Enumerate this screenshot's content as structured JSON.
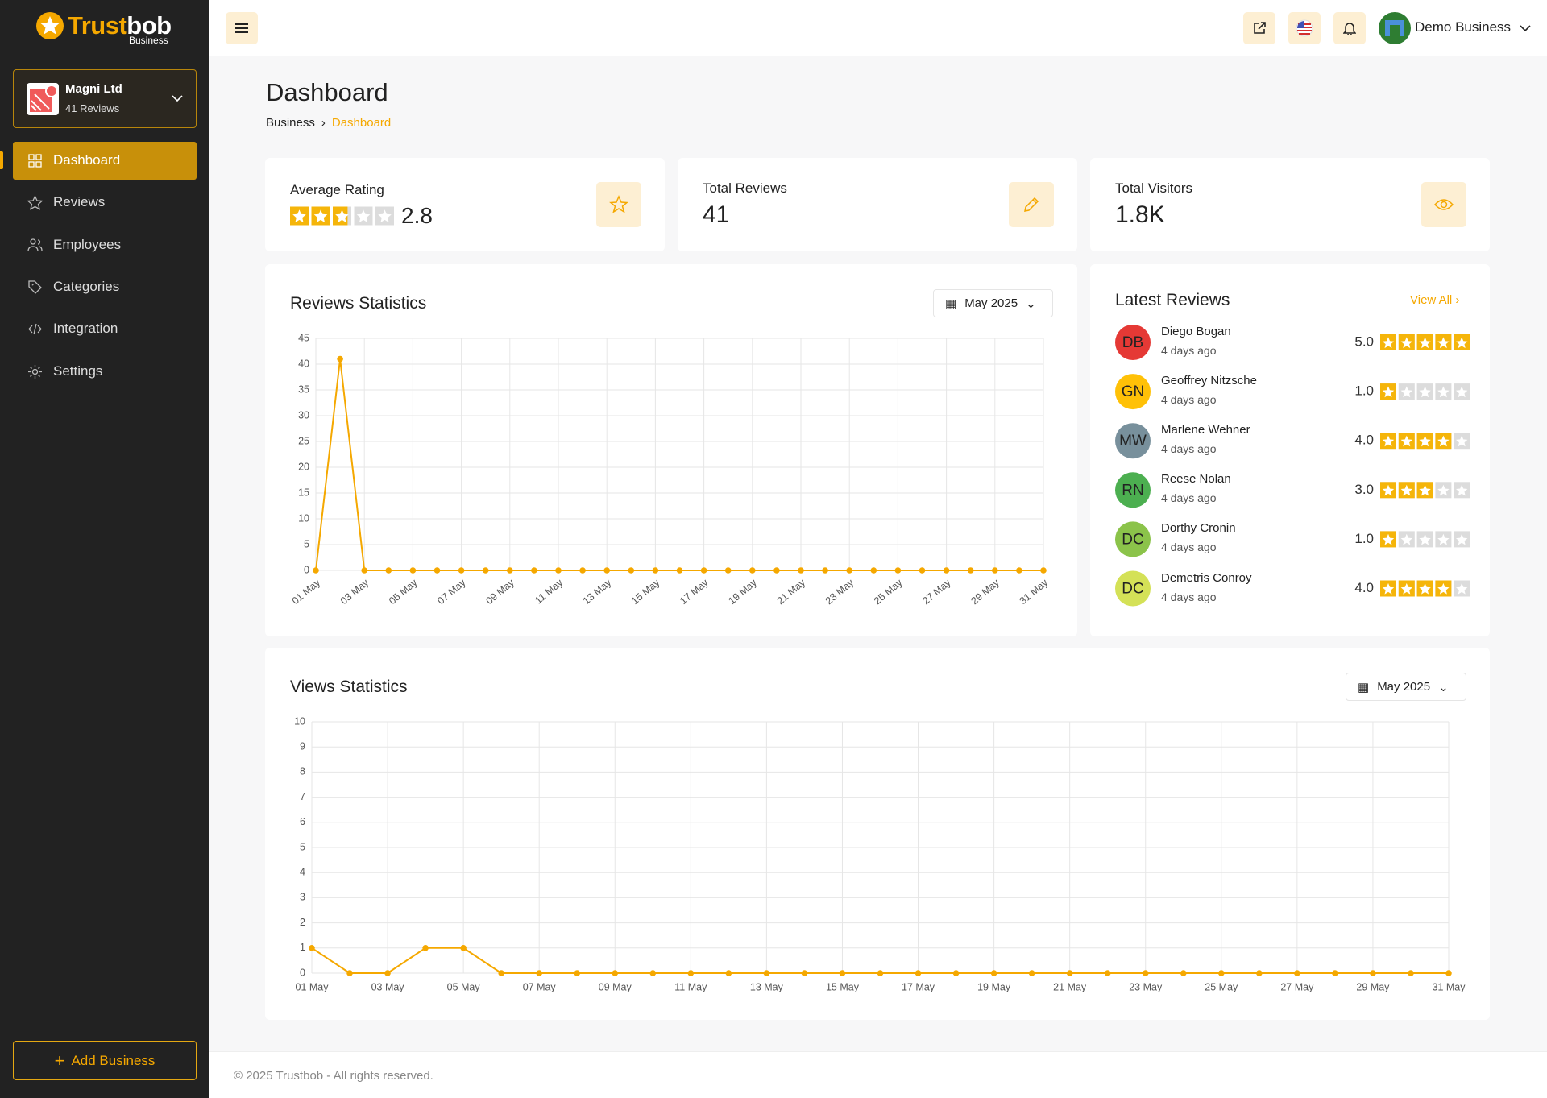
{
  "brand": {
    "name_parts": [
      "Trust",
      "bob"
    ],
    "sub": "Business"
  },
  "business": {
    "name": "Magni Ltd",
    "reviews": "41 Reviews"
  },
  "nav": [
    "Dashboard",
    "Reviews",
    "Employees",
    "Categories",
    "Integration",
    "Settings"
  ],
  "add_business": "Add Business",
  "user": "Demo Business",
  "page": {
    "title": "Dashboard",
    "breadcrumb": [
      "Business",
      "Dashboard"
    ]
  },
  "stats": [
    {
      "label": "Average Rating",
      "value": 2.8
    },
    {
      "label": "Total Reviews",
      "value": 41
    },
    {
      "label": "Total Visitors",
      "value": "1.8K"
    }
  ],
  "reviews_chart": {
    "type": "line",
    "title": "Reviews Statistics",
    "period": "May 2025",
    "categories": [
      "01 May",
      null,
      "03 May",
      null,
      "05 May",
      null,
      "07 May",
      null,
      "09 May",
      null,
      "11 May",
      null,
      "13 May",
      null,
      "15 May",
      null,
      "17 May",
      null,
      "19 May",
      null,
      "21 May",
      null,
      "23 May",
      null,
      "25 May",
      null,
      "27 May",
      null,
      "29 May",
      null,
      "31 May"
    ],
    "values": [
      0,
      41,
      0,
      0,
      0,
      0,
      0,
      0,
      0,
      0,
      0,
      0,
      0,
      0,
      0,
      0,
      0,
      0,
      0,
      0,
      0,
      0,
      0,
      0,
      0,
      0,
      0,
      0,
      0,
      0,
      0
    ],
    "color": "#f5a800",
    "ylim": [
      0,
      45
    ],
    "yticks": [
      0,
      5,
      10,
      15,
      20,
      25,
      30,
      35,
      40,
      45
    ],
    "grid": true
  },
  "latest_reviews": {
    "title": "Latest Reviews",
    "view_all": "View All",
    "items": [
      {
        "initials": "DB",
        "color": "#e53935",
        "name": "Diego Bogan",
        "time": "4 days ago",
        "rating": 5,
        "rating_label": "5.0"
      },
      {
        "initials": "GN",
        "color": "#ffc107",
        "name": "Geoffrey Nitzsche",
        "time": "4 days ago",
        "rating": 1,
        "rating_label": "1.0"
      },
      {
        "initials": "MW",
        "color": "#78909c",
        "name": "Marlene Wehner",
        "time": "4 days ago",
        "rating": 4,
        "rating_label": "4.0"
      },
      {
        "initials": "RN",
        "color": "#4caf50",
        "name": "Reese Nolan",
        "time": "4 days ago",
        "rating": 3,
        "rating_label": "3.0"
      },
      {
        "initials": "DC",
        "color": "#8bc34a",
        "name": "Dorthy Cronin",
        "time": "4 days ago",
        "rating": 1,
        "rating_label": "1.0"
      },
      {
        "initials": "DC",
        "color": "#d4e157",
        "name": "Demetris Conroy",
        "time": "4 days ago",
        "rating": 4,
        "rating_label": "4.0"
      }
    ]
  },
  "views_chart": {
    "type": "line",
    "title": "Views Statistics",
    "period": "May 2025",
    "categories": [
      "01 May",
      null,
      "03 May",
      null,
      "05 May",
      null,
      "07 May",
      null,
      "09 May",
      null,
      "11 May",
      null,
      "13 May",
      null,
      "15 May",
      null,
      "17 May",
      null,
      "19 May",
      null,
      "21 May",
      null,
      "23 May",
      null,
      "25 May",
      null,
      "27 May",
      null,
      "29 May",
      null,
      "31 May"
    ],
    "values": [
      1,
      0,
      0,
      1,
      1,
      0,
      0,
      0,
      0,
      0,
      0,
      0,
      0,
      0,
      0,
      0,
      0,
      0,
      0,
      0,
      0,
      0,
      0,
      0,
      0,
      0,
      0,
      0,
      0,
      0,
      0
    ],
    "color": "#f5a800",
    "ylim": [
      0,
      10
    ],
    "yticks": [
      0,
      1,
      2,
      3,
      4,
      5,
      6,
      7,
      8,
      9,
      10
    ],
    "grid": true
  },
  "footer": "© 2025 Trustbob - All rights reserved."
}
